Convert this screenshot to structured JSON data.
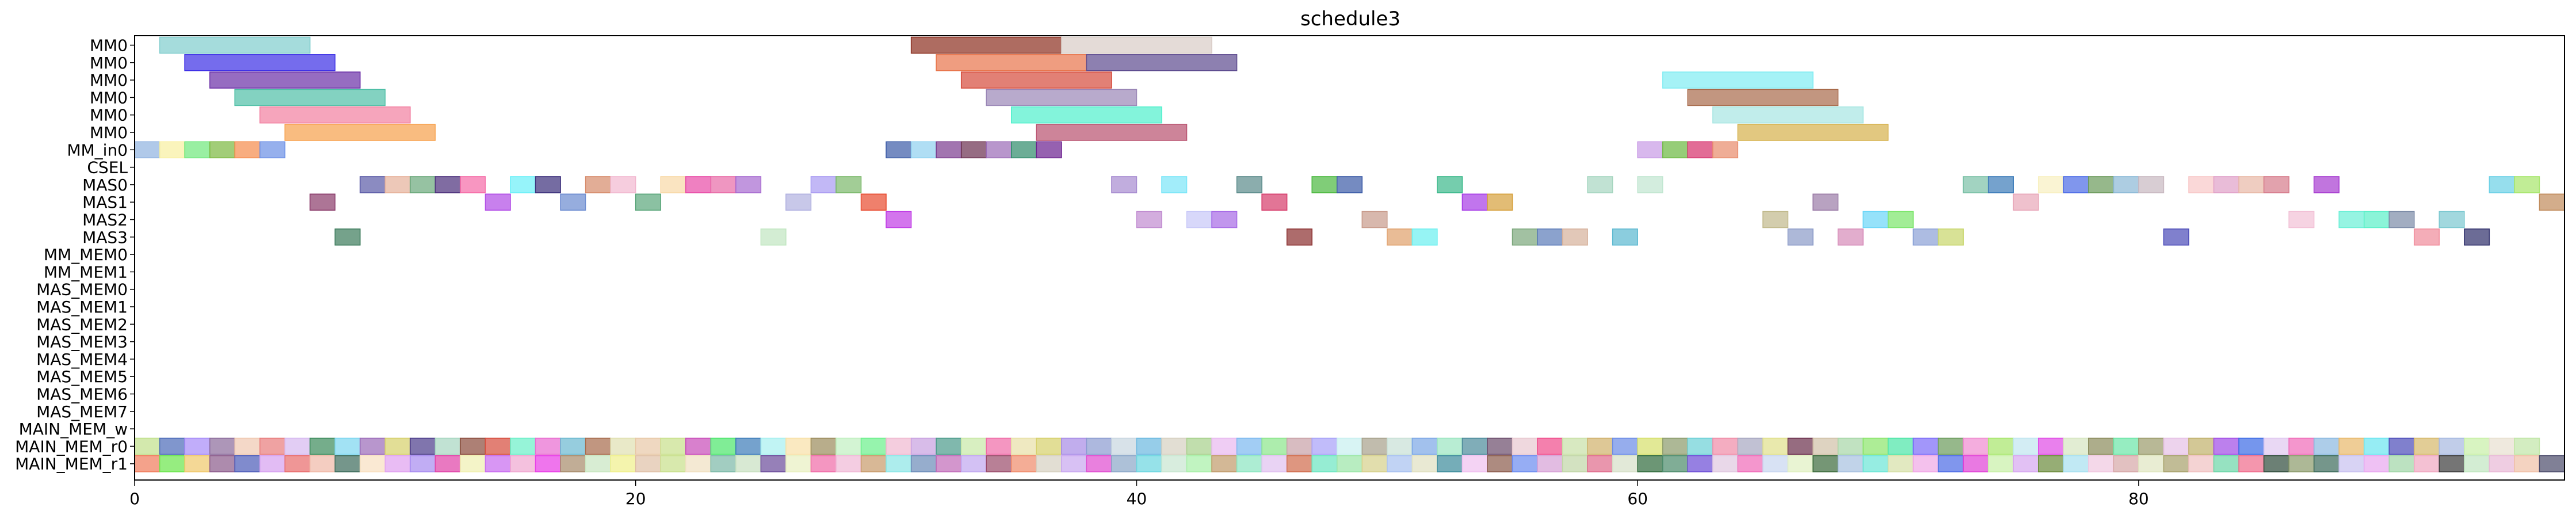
{
  "chart_data": {
    "type": "gantt",
    "title": "schedule3",
    "xlim": [
      0,
      97
    ],
    "x_ticks": [
      0,
      20,
      40,
      60,
      80
    ],
    "x_tick_labels": [
      "0",
      "20",
      "40",
      "60",
      "80"
    ],
    "rows": [
      "MM0",
      "MM0",
      "MM0",
      "MM0",
      "MM0",
      "MM0",
      "MM_in0",
      "CSEL",
      "MAS0",
      "MAS1",
      "MAS2",
      "MAS3",
      "MM_MEM0",
      "MM_MEM1",
      "MAS_MEM0",
      "MAS_MEM1",
      "MAS_MEM2",
      "MAS_MEM3",
      "MAS_MEM4",
      "MAS_MEM5",
      "MAS_MEM6",
      "MAS_MEM7",
      "MAIN_MEM_w",
      "MAIN_MEM_r0",
      "MAIN_MEM_r1"
    ],
    "tasks": [
      {
        "row": 0,
        "start": 1,
        "end": 7,
        "color": "#7fcdcd"
      },
      {
        "row": 1,
        "start": 2,
        "end": 8,
        "color": "#3b2ee6"
      },
      {
        "row": 2,
        "start": 3,
        "end": 9,
        "color": "#6a2ea6"
      },
      {
        "row": 3,
        "start": 4,
        "end": 10,
        "color": "#4fbfa6"
      },
      {
        "row": 4,
        "start": 5,
        "end": 11,
        "color": "#f27fa0"
      },
      {
        "row": 5,
        "start": 6,
        "end": 12,
        "color": "#f7a04a"
      },
      {
        "row": 0,
        "start": 31,
        "end": 37,
        "color": "#8b2e1e"
      },
      {
        "row": 0,
        "start": 37,
        "end": 43,
        "color": "#d8ccc6"
      },
      {
        "row": 1,
        "start": 32,
        "end": 38,
        "color": "#e8744a"
      },
      {
        "row": 1,
        "start": 38,
        "end": 44,
        "color": "#5c4a8e"
      },
      {
        "row": 2,
        "start": 33,
        "end": 39,
        "color": "#d64a3a"
      },
      {
        "row": 3,
        "start": 34,
        "end": 40,
        "color": "#9a86b6"
      },
      {
        "row": 4,
        "start": 35,
        "end": 41,
        "color": "#4ef0cc"
      },
      {
        "row": 5,
        "start": 36,
        "end": 42,
        "color": "#b8506e"
      },
      {
        "row": 2,
        "start": 61,
        "end": 67,
        "color": "#7fecf2"
      },
      {
        "row": 3,
        "start": 62,
        "end": 68,
        "color": "#a86a4a"
      },
      {
        "row": 4,
        "start": 63,
        "end": 69,
        "color": "#a6e6e2"
      },
      {
        "row": 5,
        "start": 64,
        "end": 70,
        "color": "#d6b04a"
      },
      {
        "row": 6,
        "start": 0,
        "end": 1,
        "color": "#8fb2e0"
      },
      {
        "row": 6,
        "start": 1,
        "end": 2,
        "color": "#f8f0a0"
      },
      {
        "row": 6,
        "start": 2,
        "end": 3,
        "color": "#6ee87a"
      },
      {
        "row": 6,
        "start": 3,
        "end": 4,
        "color": "#7ab83e"
      },
      {
        "row": 6,
        "start": 4,
        "end": 5,
        "color": "#f58a4a"
      },
      {
        "row": 6,
        "start": 5,
        "end": 6,
        "color": "#6a8ee6"
      },
      {
        "row": 6,
        "start": 30,
        "end": 31,
        "color": "#3a5aa6"
      },
      {
        "row": 6,
        "start": 31,
        "end": 32,
        "color": "#8ed0f0"
      },
      {
        "row": 6,
        "start": 32,
        "end": 33,
        "color": "#7a3a8e"
      },
      {
        "row": 6,
        "start": 33,
        "end": 34,
        "color": "#6a2e4e"
      },
      {
        "row": 6,
        "start": 34,
        "end": 35,
        "color": "#9a6ab6"
      },
      {
        "row": 6,
        "start": 35,
        "end": 36,
        "color": "#2e8a6a"
      },
      {
        "row": 6,
        "start": 36,
        "end": 37,
        "color": "#6a1e8e"
      },
      {
        "row": 6,
        "start": 60,
        "end": 61,
        "color": "#c89ae6"
      },
      {
        "row": 6,
        "start": 61,
        "end": 62,
        "color": "#6ab83e"
      },
      {
        "row": 6,
        "start": 62,
        "end": 63,
        "color": "#d62e6a"
      },
      {
        "row": 6,
        "start": 63,
        "end": 64,
        "color": "#e88a6a"
      },
      {
        "row": 8,
        "start": 9,
        "end": 10,
        "color": "#5a5aa6"
      },
      {
        "row": 8,
        "start": 10,
        "end": 11,
        "color": "#e6b09a"
      },
      {
        "row": 8,
        "start": 11,
        "end": 12,
        "color": "#6aa87a"
      },
      {
        "row": 8,
        "start": 12,
        "end": 13,
        "color": "#4a2e7a"
      },
      {
        "row": 8,
        "start": 13,
        "end": 14,
        "color": "#f56aa6"
      },
      {
        "row": 8,
        "start": 15,
        "end": 16,
        "color": "#6af0f8"
      },
      {
        "row": 8,
        "start": 16,
        "end": 17,
        "color": "#3a2e7a"
      },
      {
        "row": 8,
        "start": 18,
        "end": 19,
        "color": "#d68a6a"
      },
      {
        "row": 8,
        "start": 19,
        "end": 20,
        "color": "#f2b8d0"
      },
      {
        "row": 8,
        "start": 21,
        "end": 22,
        "color": "#f8d8a6"
      },
      {
        "row": 8,
        "start": 22,
        "end": 23,
        "color": "#e84aa6"
      },
      {
        "row": 8,
        "start": 23,
        "end": 24,
        "color": "#e86aa6"
      },
      {
        "row": 8,
        "start": 24,
        "end": 25,
        "color": "#a66ad0"
      },
      {
        "row": 8,
        "start": 27,
        "end": 28,
        "color": "#a89af2"
      },
      {
        "row": 8,
        "start": 28,
        "end": 29,
        "color": "#7ab86a"
      },
      {
        "row": 8,
        "start": 39,
        "end": 40,
        "color": "#a68ad0"
      },
      {
        "row": 8,
        "start": 41,
        "end": 42,
        "color": "#7ae6f8"
      },
      {
        "row": 8,
        "start": 44,
        "end": 45,
        "color": "#5a8a8a"
      },
      {
        "row": 8,
        "start": 47,
        "end": 48,
        "color": "#4ab83e"
      },
      {
        "row": 8,
        "start": 48,
        "end": 49,
        "color": "#3a5aa6"
      },
      {
        "row": 8,
        "start": 52,
        "end": 53,
        "color": "#3ab88a"
      },
      {
        "row": 8,
        "start": 58,
        "end": 59,
        "color": "#a6d6c0"
      },
      {
        "row": 8,
        "start": 60,
        "end": 61,
        "color": "#c0e6d0"
      },
      {
        "row": 8,
        "start": 73,
        "end": 74,
        "color": "#7ac0a6"
      },
      {
        "row": 8,
        "start": 74,
        "end": 75,
        "color": "#3a7ab8"
      },
      {
        "row": 8,
        "start": 76,
        "end": 77,
        "color": "#f8f0c0"
      },
      {
        "row": 8,
        "start": 77,
        "end": 78,
        "color": "#4a6ae6"
      },
      {
        "row": 8,
        "start": 78,
        "end": 79,
        "color": "#6a9a5a"
      },
      {
        "row": 8,
        "start": 79,
        "end": 80,
        "color": "#8ab8d6"
      },
      {
        "row": 8,
        "start": 80,
        "end": 81,
        "color": "#c8b8c0"
      },
      {
        "row": 8,
        "start": 82,
        "end": 83,
        "color": "#f8c8c8"
      },
      {
        "row": 8,
        "start": 83,
        "end": 84,
        "color": "#e0a0c8"
      },
      {
        "row": 8,
        "start": 84,
        "end": 85,
        "color": "#e8b8a6"
      },
      {
        "row": 8,
        "start": 85,
        "end": 86,
        "color": "#d67a8a"
      },
      {
        "row": 8,
        "start": 87,
        "end": 88,
        "color": "#a63ad0"
      },
      {
        "row": 8,
        "start": 94,
        "end": 95,
        "color": "#6ad0e6"
      },
      {
        "row": 8,
        "start": 95,
        "end": 96,
        "color": "#a6e66a"
      },
      {
        "row": 9,
        "start": 7,
        "end": 8,
        "color": "#8a3a6a"
      },
      {
        "row": 9,
        "start": 14,
        "end": 15,
        "color": "#b04ae6"
      },
      {
        "row": 9,
        "start": 17,
        "end": 18,
        "color": "#6a8ad0"
      },
      {
        "row": 9,
        "start": 20,
        "end": 21,
        "color": "#5aa67a"
      },
      {
        "row": 9,
        "start": 26,
        "end": 27,
        "color": "#b0b0e0"
      },
      {
        "row": 9,
        "start": 29,
        "end": 30,
        "color": "#e84a2e"
      },
      {
        "row": 9,
        "start": 45,
        "end": 46,
        "color": "#d63a6a"
      },
      {
        "row": 9,
        "start": 53,
        "end": 54,
        "color": "#a63ae6"
      },
      {
        "row": 9,
        "start": 54,
        "end": 55,
        "color": "#d6a03a"
      },
      {
        "row": 9,
        "start": 67,
        "end": 68,
        "color": "#9a7aa6"
      },
      {
        "row": 9,
        "start": 75,
        "end": 76,
        "color": "#e8a6b8"
      },
      {
        "row": 9,
        "start": 96,
        "end": 97,
        "color": "#c08a5a"
      },
      {
        "row": 10,
        "start": 30,
        "end": 31,
        "color": "#c03ae6"
      },
      {
        "row": 10,
        "start": 40,
        "end": 41,
        "color": "#c08ad0"
      },
      {
        "row": 10,
        "start": 42,
        "end": 43,
        "color": "#c8c8f8"
      },
      {
        "row": 10,
        "start": 43,
        "end": 44,
        "color": "#a66ae6"
      },
      {
        "row": 10,
        "start": 49,
        "end": 50,
        "color": "#c89a8a"
      },
      {
        "row": 10,
        "start": 65,
        "end": 66,
        "color": "#c0b88a"
      },
      {
        "row": 10,
        "start": 69,
        "end": 70,
        "color": "#6ad6f8"
      },
      {
        "row": 10,
        "start": 70,
        "end": 71,
        "color": "#7ae66a"
      },
      {
        "row": 10,
        "start": 86,
        "end": 87,
        "color": "#f2c0d6"
      },
      {
        "row": 10,
        "start": 88,
        "end": 89,
        "color": "#6af0d6"
      },
      {
        "row": 10,
        "start": 89,
        "end": 90,
        "color": "#5af0c8"
      },
      {
        "row": 10,
        "start": 90,
        "end": 91,
        "color": "#7a8aa6"
      },
      {
        "row": 10,
        "start": 92,
        "end": 93,
        "color": "#7ac8d0"
      },
      {
        "row": 11,
        "start": 8,
        "end": 9,
        "color": "#3a7a5a"
      },
      {
        "row": 11,
        "start": 25,
        "end": 26,
        "color": "#c0e6c0"
      },
      {
        "row": 11,
        "start": 46,
        "end": 47,
        "color": "#8a2e2e"
      },
      {
        "row": 11,
        "start": 50,
        "end": 51,
        "color": "#e0a06a"
      },
      {
        "row": 11,
        "start": 51,
        "end": 52,
        "color": "#6af0f0"
      },
      {
        "row": 11,
        "start": 55,
        "end": 56,
        "color": "#7aa67a"
      },
      {
        "row": 11,
        "start": 56,
        "end": 57,
        "color": "#5a7ab8"
      },
      {
        "row": 11,
        "start": 57,
        "end": 58,
        "color": "#d6b09a"
      },
      {
        "row": 11,
        "start": 59,
        "end": 60,
        "color": "#5ab8d0"
      },
      {
        "row": 11,
        "start": 66,
        "end": 67,
        "color": "#8a9ac8"
      },
      {
        "row": 11,
        "start": 68,
        "end": 69,
        "color": "#d68ab8"
      },
      {
        "row": 11,
        "start": 71,
        "end": 72,
        "color": "#8aa0d6"
      },
      {
        "row": 11,
        "start": 72,
        "end": 73,
        "color": "#c8d66a"
      },
      {
        "row": 11,
        "start": 81,
        "end": 82,
        "color": "#4a4ab8"
      },
      {
        "row": 11,
        "start": 91,
        "end": 92,
        "color": "#f08a9a"
      },
      {
        "row": 11,
        "start": 93,
        "end": 94,
        "color": "#2e2e6a"
      }
    ],
    "mem_rows": {
      "r0": {
        "row": 23,
        "start": 0,
        "end": 96,
        "colors": [
          "#c0e08a",
          "#4a6ab8",
          "#a68af8",
          "#8a6a9a",
          "#f0c8b0",
          "#e87a7a",
          "#d6b8f0",
          "#3a8a5a",
          "#7ad6f0",
          "#9a6ab8",
          "#d6d06a",
          "#4a3a8a",
          "#a6d6c0",
          "#8a4a3a",
          "#d64a3a",
          "#6af0c8",
          "#e86ad0",
          "#6ab8d0",
          "#a66a4a",
          "#e0e0b0",
          "#e8c8a6",
          "#c8e08a",
          "#c84ab8",
          "#4ae66a",
          "#3a7ab8",
          "#a6f0f0",
          "#f8e0a6",
          "#9a8a5a",
          "#c0f0c0",
          "#6af08a",
          "#f0b8d0",
          "#c8a0e0",
          "#4a9a8a",
          "#c8e8a6",
          "#f06aa6",
          "#e8e0a6",
          "#d6d06a",
          "#a68ae6",
          "#8a9ad0",
          "#c8d6e0",
          "#6ab8e0",
          "#d6d0c0",
          "#a6d08a",
          "#e8b8f0",
          "#7ab8f0",
          "#8ae68a",
          "#c8a0a6",
          "#a6a0f8",
          "#c8f0f0",
          "#a6a08a",
          "#c8e0d6",
          "#7aa6e6",
          "#9ae6c0",
          "#4a8a9a",
          "#6a4a6a",
          "#e8c8d0",
          "#f04a8a",
          "#c8e0a6",
          "#d0b06a",
          "#6a8ae6",
          "#d6e06a",
          "#8a9a6a",
          "#6ad0d6",
          "#f08aa6",
          "#a6a6c0",
          "#e0e08a",
          "#6a2e4a",
          "#d0c0a6",
          "#a6d6a6",
          "#8ae66a",
          "#4ae6a6",
          "#7a6af8",
          "#6a9a5a",
          "#f08ad0",
          "#a6e66a",
          "#c0e6f0",
          "#e04ae6",
          "#d6e6c0",
          "#8a8a5a",
          "#6ae6a6",
          "#9a9a6a",
          "#e6c0e6",
          "#c0b06a",
          "#a04ae6",
          "#3a6ae6",
          "#e0c8f0",
          "#f06ab8",
          "#8ab8e0",
          "#e8b86a",
          "#6ae6f0",
          "#4a4ab8",
          "#d6b86a",
          "#a6b8e0",
          "#c8f0a6",
          "#e8e0d0",
          "#c0e6a6"
        ]
      },
      "r1": {
        "row": 24,
        "start": 0,
        "end": 97,
        "colors": [
          "#f07a5a",
          "#6ae64a",
          "#f0c86a",
          "#8a5a8a",
          "#4a5ab8",
          "#d6a0f0",
          "#e86a6a",
          "#f0b8a6",
          "#3a6a5a",
          "#f8e0c0",
          "#e0a0f0",
          "#a68af0",
          "#e040a6",
          "#f0f0b0",
          "#c86af0",
          "#f0a6d0",
          "#e83ae6",
          "#a68a6a",
          "#c8e6c0",
          "#f0f08a",
          "#e0c0a6",
          "#c8e08a",
          "#f0e0c0",
          "#7ab8a6",
          "#c8e0c0",
          "#6a4a9a",
          "#e8f0c0",
          "#f06aa6",
          "#f0b8d6",
          "#c89a6a",
          "#8ae6e6",
          "#6a8ab8",
          "#c06ab8",
          "#c0a6f0",
          "#9a4a6a",
          "#f08a6a",
          "#d6d0c0",
          "#c8a6f0",
          "#e04ad0",
          "#8aa6c8",
          "#6ad6e0",
          "#c8e6d0",
          "#a6f0a6",
          "#c09a6a",
          "#8ae6c0",
          "#e0c0f0",
          "#d06a4a",
          "#6ae6c0",
          "#9ae6a6",
          "#d6d08a",
          "#a6c0f0",
          "#e0e0c0",
          "#3a8a9a",
          "#f0c0f0",
          "#8a5a4a",
          "#6a8af0",
          "#d6a0d6",
          "#c0d6a6",
          "#e06a8a",
          "#d6e0c8",
          "#2e6a3a",
          "#4a8a6a",
          "#6a4ad6",
          "#e0c8e0",
          "#f06ab8",
          "#c8d6f0",
          "#e0f0c0",
          "#3a6a3a",
          "#a6c0e0",
          "#6ae6d6",
          "#d6e0a6",
          "#f0a6e6",
          "#4a6ae6",
          "#e040d6",
          "#c8f0a6",
          "#d6a6f0",
          "#6a8a3a",
          "#a6e0f0",
          "#f0c8e0",
          "#d6a6a6",
          "#e0e6c0",
          "#a6a06a",
          "#f0c0c0",
          "#6ad6a6",
          "#f06a8a",
          "#2e4a3a",
          "#8a9a6a",
          "#3a6a5a",
          "#c8c0f0",
          "#e8a6f0",
          "#a0d6a6",
          "#f0a6c0",
          "#3a3a3a",
          "#c0e6c0",
          "#e8b8d6",
          "#f0c0a6",
          "#4a4a6a"
        ]
      }
    }
  }
}
